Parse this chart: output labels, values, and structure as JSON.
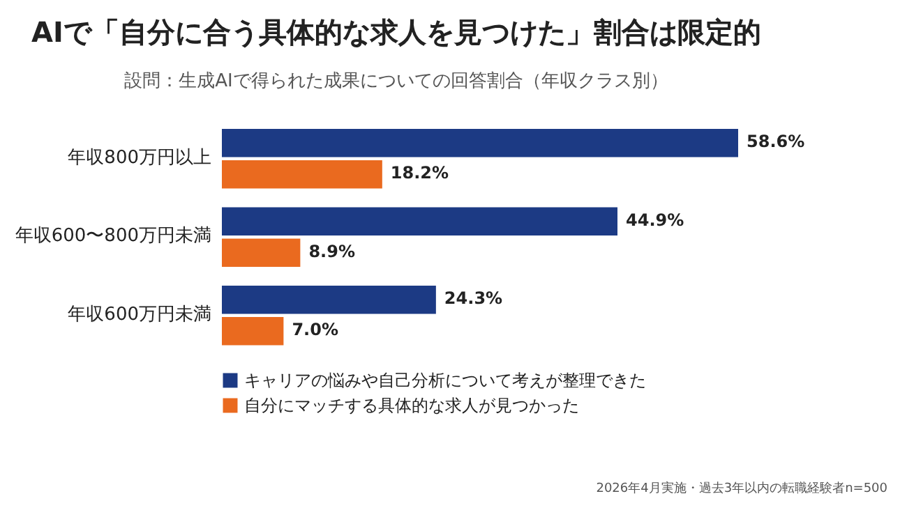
{
  "chart_data": {
    "type": "bar",
    "orientation": "horizontal",
    "title": "AIで「自分に合う具体的な求人を見つけた」割合は限定的",
    "subtitle": "設問：生成AIで得られた成果についての回答割合（年収クラス別）",
    "categories": [
      "年収800万円以上",
      "年収600〜800万円未満",
      "年収600万円未満"
    ],
    "series": [
      {
        "name": "キャリアの悩みや自己分析について考えが整理できた",
        "color": "#1c3a84",
        "values": [
          58.6,
          44.9,
          24.3
        ],
        "value_labels": [
          "58.6%",
          "44.9%",
          "24.3%"
        ]
      },
      {
        "name": "自分にマッチする具体的な求人が見つかった",
        "color": "#ea6a1f",
        "values": [
          18.2,
          8.9,
          7.0
        ],
        "value_labels": [
          "18.2%",
          "8.9%",
          "7.0%"
        ]
      }
    ],
    "legend": "bottom",
    "tick_labels": "y",
    "annotations": [
      "2026年4月実施・過去3年以内の転職経験者n=500"
    ]
  }
}
